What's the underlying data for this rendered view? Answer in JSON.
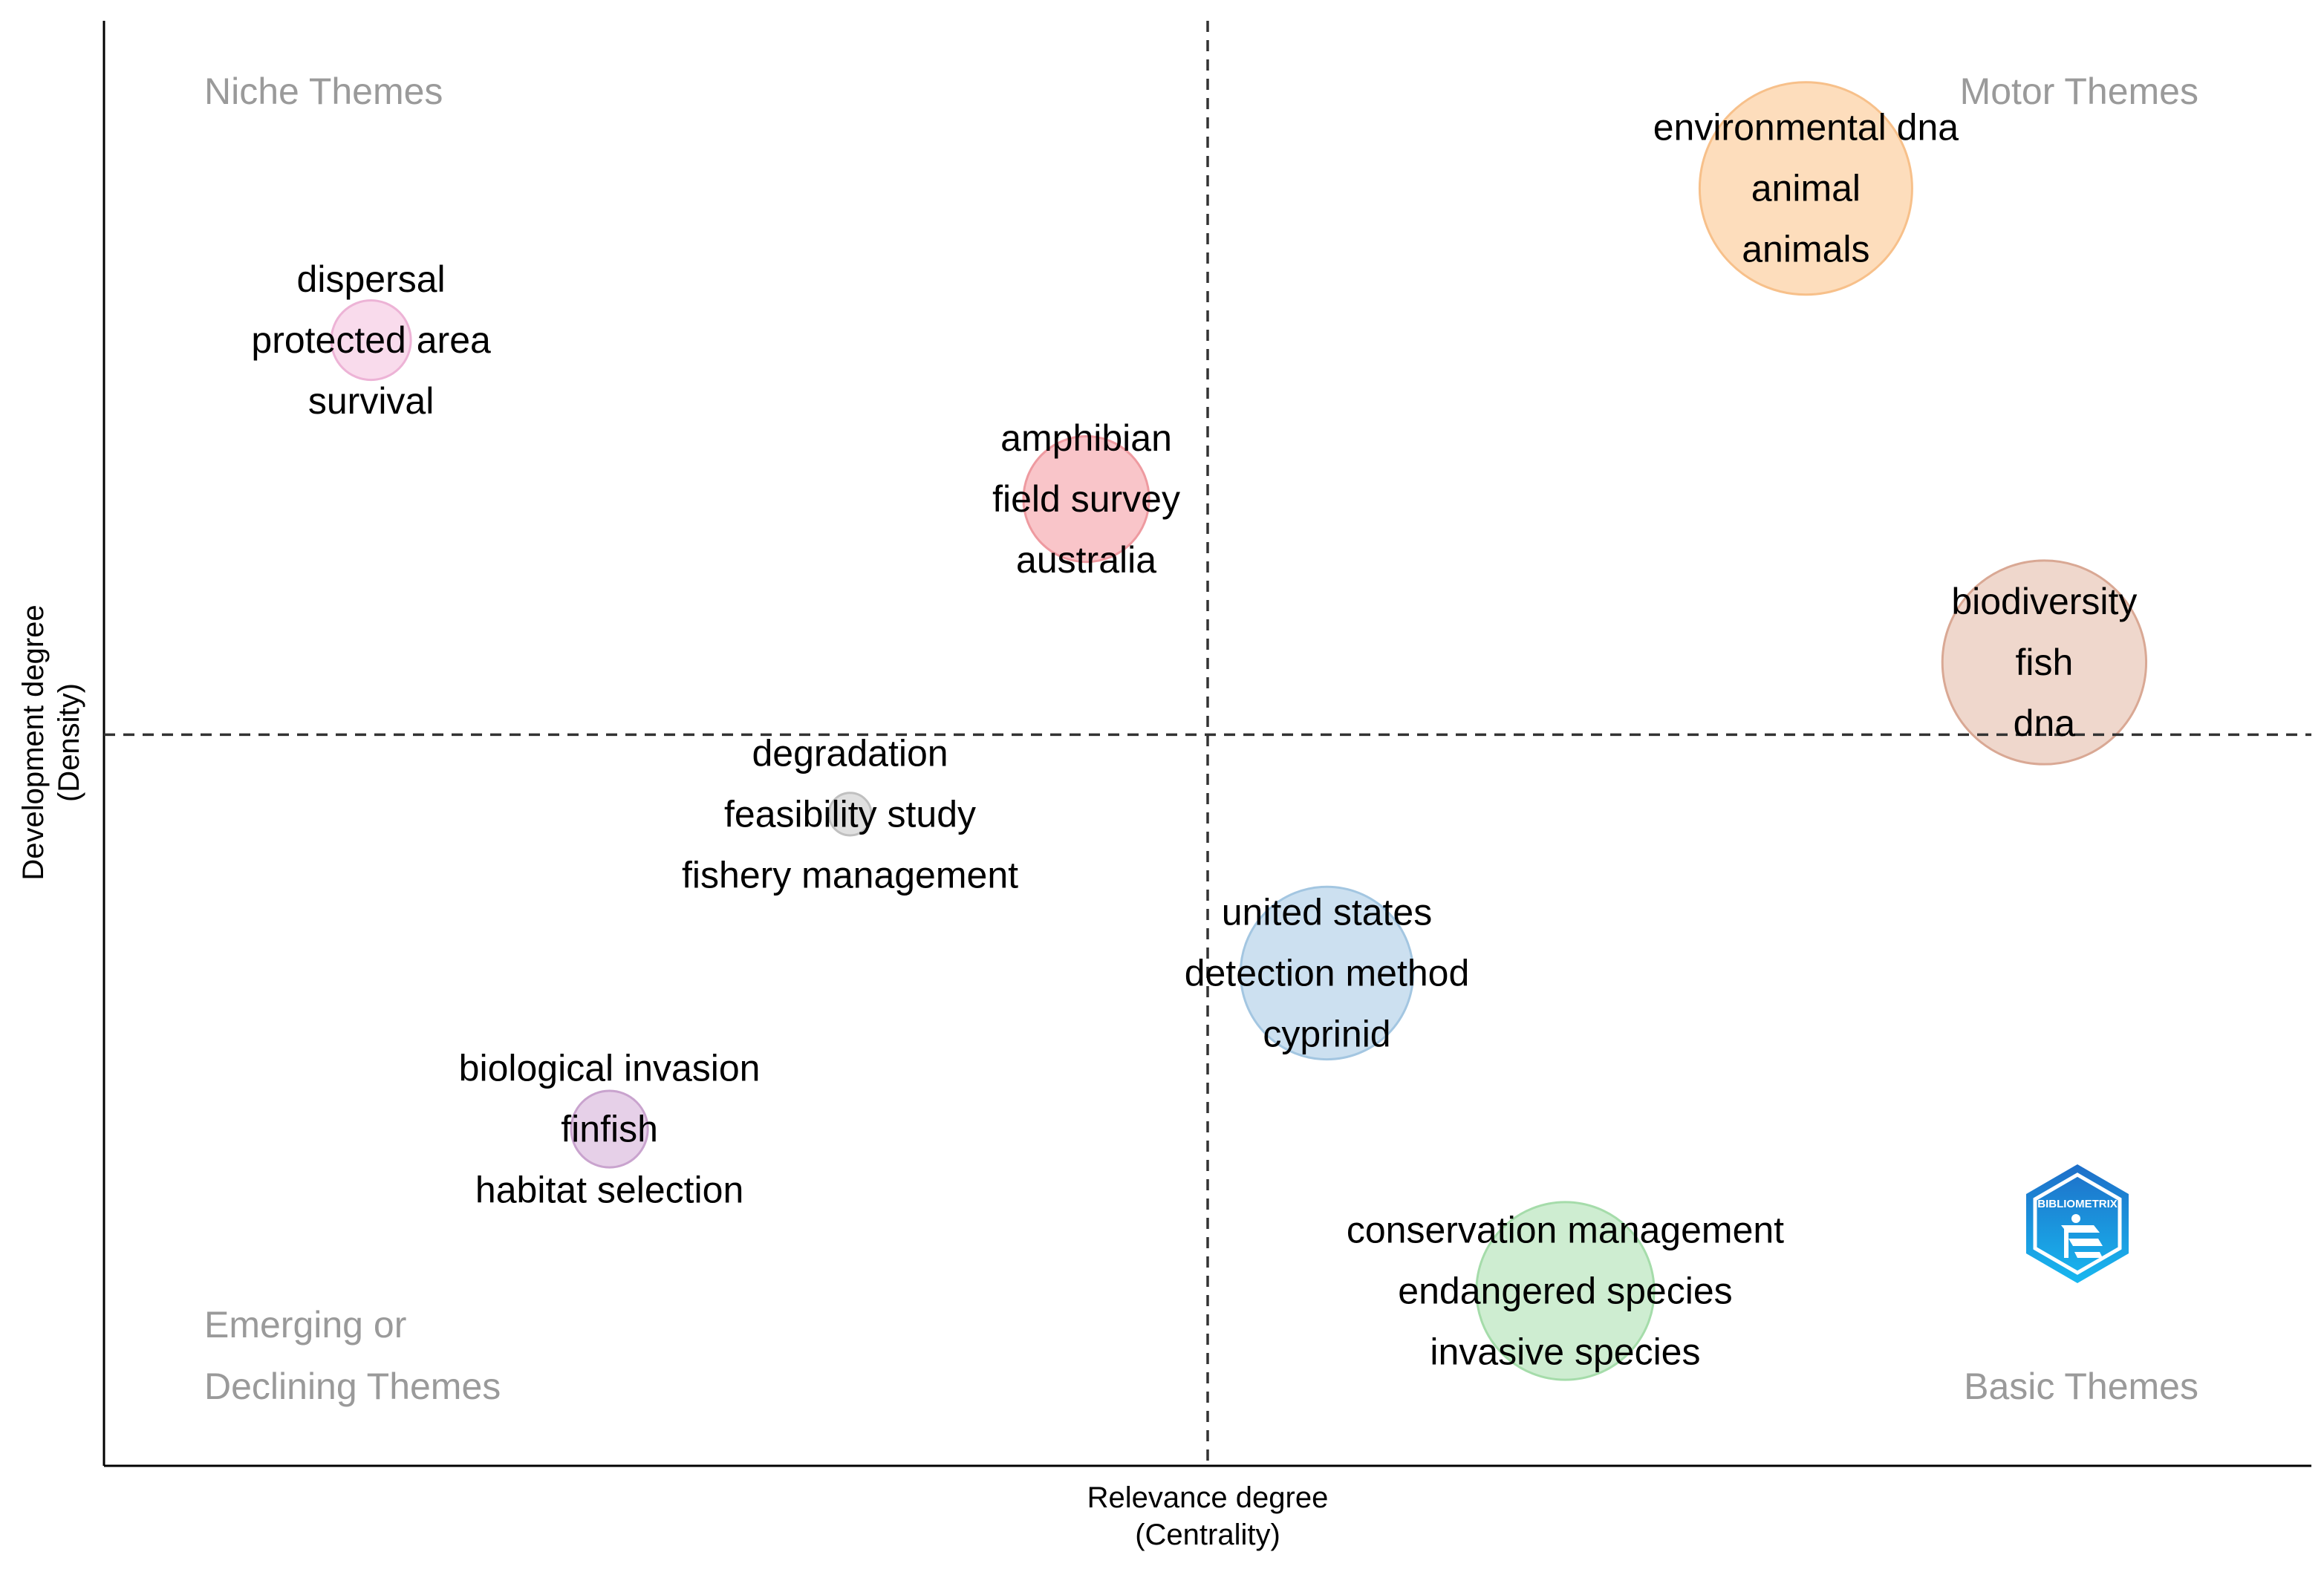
{
  "chart_data": {
    "type": "scatter",
    "title": "",
    "xlabel": "Relevance degree",
    "xlabel_sub": "(Centrality)",
    "ylabel": "Development degree",
    "ylabel_sub": "(Density)",
    "xlim": [
      0,
      1
    ],
    "ylim": [
      0,
      1
    ],
    "x_divider": 0.5,
    "y_divider": 0.506,
    "grid": false,
    "quadrants": {
      "top_left": "Niche Themes",
      "top_right": "Motor Themes",
      "bottom_left_line1": "Emerging or",
      "bottom_left_line2": "Declining Themes",
      "bottom_right": "Basic Themes"
    },
    "clusters": [
      {
        "name": "environmental dna",
        "x": 0.771,
        "y": 0.884,
        "size": 1.0,
        "color": "#FDD9B5",
        "stroke": "#F7C08A",
        "labels": [
          "environmental dna",
          "animal",
          "animals"
        ]
      },
      {
        "name": "biodiversity",
        "x": 0.879,
        "y": 0.556,
        "size": 0.92,
        "color": "#EDD3C6",
        "stroke": "#D9A894",
        "labels": [
          "biodiversity",
          "fish",
          "dna"
        ]
      },
      {
        "name": "dispersal",
        "x": 0.121,
        "y": 0.779,
        "size": 0.14,
        "color": "#F8D7EA",
        "stroke": "#EDB3D6",
        "labels": [
          "dispersal",
          "protected area",
          "survival"
        ]
      },
      {
        "name": "amphibian",
        "x": 0.445,
        "y": 0.669,
        "size": 0.35,
        "color": "#F8BFC3",
        "stroke": "#EE9AA0",
        "labels": [
          "amphibian",
          "field survey",
          "australia"
        ]
      },
      {
        "name": "degradation",
        "x": 0.338,
        "y": 0.451,
        "size": 0.04,
        "color": "#DDDDDD",
        "stroke": "#C0C0C0",
        "labels": [
          "degradation",
          "feasibility study",
          "fishery management"
        ]
      },
      {
        "name": "united states",
        "x": 0.554,
        "y": 0.341,
        "size": 0.66,
        "color": "#C6DDEE",
        "stroke": "#A3C6E1",
        "labels": [
          "united states",
          "detection method",
          "cyprinid"
        ]
      },
      {
        "name": "biological invasion",
        "x": 0.229,
        "y": 0.233,
        "size": 0.13,
        "color": "#E3CBE6",
        "stroke": "#C9A3CE",
        "labels": [
          "biological invasion",
          "finfish",
          "habitat selection"
        ]
      },
      {
        "name": "conservation management",
        "x": 0.662,
        "y": 0.121,
        "size": 0.7,
        "color": "#C9EBCC",
        "stroke": "#A5DCAA",
        "labels": [
          "conservation management",
          "endangered species",
          "invasive species"
        ]
      }
    ]
  },
  "logo": {
    "text": "BIBLIOMETRIX"
  }
}
